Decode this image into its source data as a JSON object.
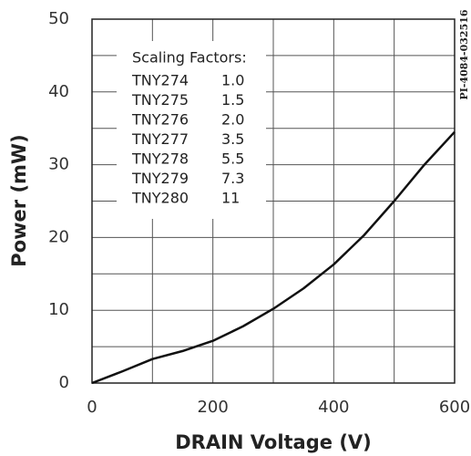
{
  "chart_data": {
    "type": "line",
    "x_label": "DRAIN Voltage (V)",
    "y_label": "Power (mW)",
    "code": "PI-4084-032516",
    "x": [
      0,
      50,
      100,
      150,
      200,
      250,
      300,
      350,
      400,
      450,
      500,
      550,
      600
    ],
    "series": [
      {
        "color": "#111111",
        "values": [
          0,
          1.6,
          3.3,
          4.4,
          5.8,
          7.8,
          10.2,
          13,
          16.3,
          20.3,
          25,
          30,
          34.5
        ]
      }
    ],
    "xlim": [
      0,
      600
    ],
    "xticks": [
      0,
      200,
      400,
      600
    ],
    "x_minor_ticks": [
      100,
      300,
      500
    ],
    "ylim": [
      0,
      50
    ],
    "yticks": [
      0,
      10,
      20,
      30,
      40,
      50
    ],
    "y_minor_ticks": [
      5,
      15,
      25,
      35,
      45
    ],
    "grid": true,
    "scaling_factors": {
      "title": "Scaling Factors:",
      "rows": [
        [
          "TNY274",
          "1.0"
        ],
        [
          "TNY275",
          "1.5"
        ],
        [
          "TNY276",
          "2.0"
        ],
        [
          "TNY277",
          "3.5"
        ],
        [
          "TNY278",
          "5.5"
        ],
        [
          "TNY279",
          "7.3"
        ],
        [
          "TNY280",
          "11"
        ]
      ]
    }
  }
}
